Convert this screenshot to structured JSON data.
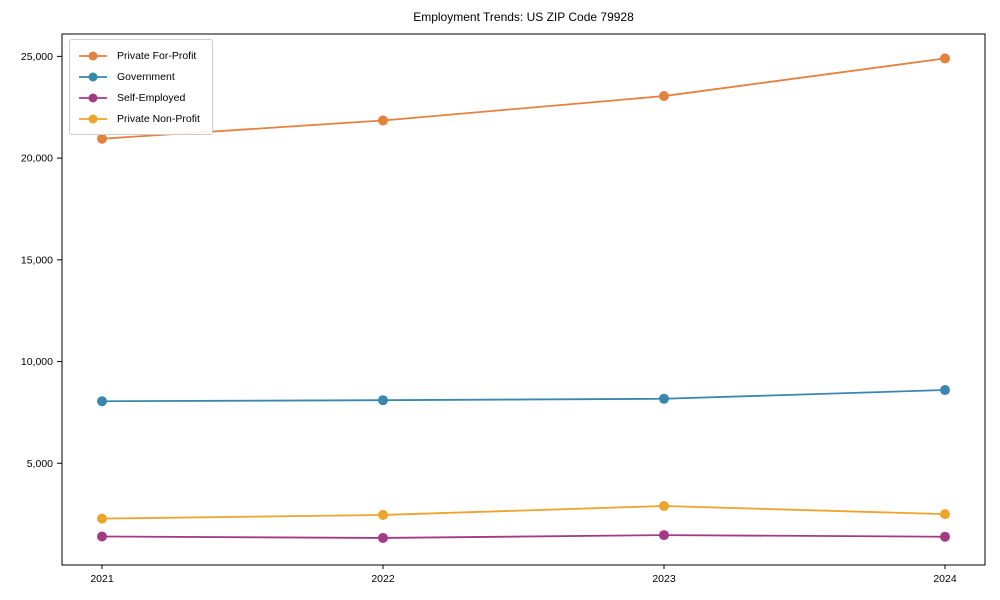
{
  "chart_data": {
    "type": "line",
    "title": "Employment Trends: US ZIP Code 79928",
    "categories": [
      "2021",
      "2022",
      "2023",
      "2024"
    ],
    "series": [
      {
        "name": "Private For-Profit",
        "color": "#e5813f",
        "values": [
          20950,
          21850,
          23050,
          24900
        ]
      },
      {
        "name": "Government",
        "color": "#3a87ad",
        "values": [
          8050,
          8100,
          8170,
          8600
        ]
      },
      {
        "name": "Self-Employed",
        "color": "#a43a84",
        "values": [
          1400,
          1330,
          1470,
          1390
        ]
      },
      {
        "name": "Private Non-Profit",
        "color": "#eea32c",
        "values": [
          2280,
          2460,
          2900,
          2500
        ]
      }
    ],
    "yticks": [
      5000,
      10000,
      15000,
      20000,
      25000
    ],
    "ytick_labels": [
      "5,000",
      "10,000",
      "15,000",
      "20,000",
      "25,000"
    ],
    "ylim": [
      0,
      26100
    ],
    "xlabel": "",
    "ylabel": "",
    "grid": false,
    "marker": "circle",
    "legend_position": "upper left",
    "colors": {
      "background": "#ffffff",
      "spine": "#000000",
      "tick": "#000000",
      "text": "#000000",
      "legend_border": "#cccccc"
    }
  }
}
